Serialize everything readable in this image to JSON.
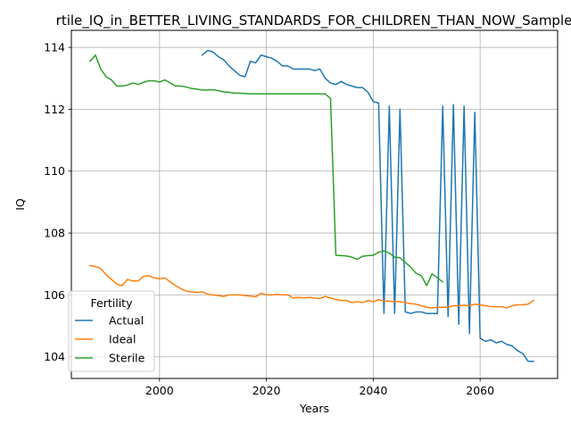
{
  "chart_data": {
    "type": "line",
    "title": "rtile_IQ_in_BETTER_LIVING_STANDARDS_FOR_CHILDREN_THAN_NOW_Sample",
    "xlabel": "Years",
    "ylabel": "IQ",
    "xlim": [
      1983.5,
      2074.5
    ],
    "ylim": [
      103.3,
      114.55
    ],
    "xticks": [
      2000,
      2020,
      2040,
      2060
    ],
    "yticks": [
      104,
      106,
      108,
      110,
      112,
      114
    ],
    "grid": true,
    "legend": {
      "title": "Fertility",
      "placement": "lower-left"
    },
    "series": [
      {
        "name": "Actual",
        "color": "#1f77b4",
        "x": [
          2008,
          2009,
          2010,
          2011,
          2012,
          2013,
          2014,
          2015,
          2016,
          2017,
          2018,
          2019,
          2020,
          2021,
          2022,
          2023,
          2024,
          2025,
          2026,
          2027,
          2028,
          2029,
          2030,
          2031,
          2032,
          2033,
          2034,
          2035,
          2036,
          2037,
          2038,
          2039,
          2040,
          2041,
          2042,
          2043,
          2044,
          2045,
          2046,
          2047,
          2048,
          2049,
          2050,
          2051,
          2052,
          2053,
          2054,
          2055,
          2056,
          2057,
          2058,
          2059,
          2060,
          2061,
          2062,
          2063,
          2064,
          2065,
          2066,
          2067,
          2068,
          2069,
          2070
        ],
        "y": [
          113.75,
          113.9,
          113.85,
          113.7,
          113.6,
          113.4,
          113.25,
          113.1,
          113.05,
          113.55,
          113.5,
          113.75,
          113.7,
          113.65,
          113.55,
          113.4,
          113.4,
          113.3,
          113.3,
          113.3,
          113.3,
          113.25,
          113.3,
          113.0,
          112.85,
          112.8,
          112.9,
          112.8,
          112.75,
          112.7,
          112.7,
          112.55,
          112.25,
          112.2,
          105.4,
          112.1,
          105.4,
          112.0,
          105.45,
          105.4,
          105.45,
          105.45,
          105.4,
          105.4,
          105.4,
          112.1,
          105.3,
          112.15,
          105.05,
          112.1,
          104.75,
          111.9,
          104.6,
          104.5,
          104.55,
          104.45,
          104.5,
          104.4,
          104.35,
          104.2,
          104.1,
          103.85,
          103.85
        ]
      },
      {
        "name": "Ideal",
        "color": "#ff7f0e",
        "x": [
          1987,
          1988,
          1989,
          1990,
          1991,
          1992,
          1993,
          1994,
          1995,
          1996,
          1997,
          1998,
          1999,
          2000,
          2001,
          2002,
          2003,
          2004,
          2005,
          2006,
          2007,
          2008,
          2009,
          2010,
          2011,
          2012,
          2013,
          2014,
          2015,
          2016,
          2017,
          2018,
          2019,
          2020,
          2021,
          2022,
          2023,
          2024,
          2025,
          2026,
          2027,
          2028,
          2029,
          2030,
          2031,
          2032,
          2033,
          2034,
          2035,
          2036,
          2037,
          2038,
          2039,
          2040,
          2041,
          2042,
          2043,
          2044,
          2045,
          2046,
          2047,
          2048,
          2049,
          2050,
          2051,
          2052,
          2053,
          2054,
          2055,
          2056,
          2057,
          2058,
          2059,
          2060,
          2061,
          2062,
          2063,
          2064,
          2065,
          2066,
          2067,
          2068,
          2069,
          2070
        ],
        "y": [
          106.95,
          106.92,
          106.85,
          106.65,
          106.5,
          106.35,
          106.3,
          106.5,
          106.45,
          106.45,
          106.6,
          106.62,
          106.55,
          106.52,
          106.55,
          106.42,
          106.3,
          106.2,
          106.12,
          106.1,
          106.08,
          106.1,
          106.02,
          106.0,
          105.98,
          105.95,
          106.0,
          106.0,
          106.0,
          105.98,
          105.96,
          105.94,
          106.05,
          106.0,
          106.0,
          106.02,
          106.0,
          106.0,
          105.9,
          105.92,
          105.9,
          105.92,
          105.9,
          105.88,
          105.95,
          105.9,
          105.85,
          105.82,
          105.82,
          105.75,
          105.78,
          105.75,
          105.82,
          105.78,
          105.85,
          105.8,
          105.8,
          105.78,
          105.78,
          105.75,
          105.72,
          105.7,
          105.65,
          105.6,
          105.58,
          105.6,
          105.6,
          105.6,
          105.65,
          105.65,
          105.67,
          105.65,
          105.7,
          105.68,
          105.65,
          105.62,
          105.62,
          105.62,
          105.58,
          105.65,
          105.68,
          105.68,
          105.7,
          105.82
        ]
      },
      {
        "name": "Sterile",
        "color": "#2ca02c",
        "x": [
          1987,
          1988,
          1989,
          1990,
          1991,
          1992,
          1993,
          1994,
          1995,
          1996,
          1997,
          1998,
          1999,
          2000,
          2001,
          2002,
          2003,
          2004,
          2005,
          2006,
          2007,
          2008,
          2009,
          2010,
          2011,
          2012,
          2013,
          2014,
          2015,
          2016,
          2017,
          2018,
          2019,
          2020,
          2021,
          2022,
          2023,
          2024,
          2025,
          2026,
          2027,
          2028,
          2029,
          2030,
          2031,
          2032,
          2033,
          2034,
          2035,
          2036,
          2037,
          2038,
          2039,
          2040,
          2041,
          2042,
          2043,
          2044,
          2045,
          2046,
          2047,
          2048,
          2049,
          2050,
          2051,
          2052,
          2053
        ],
        "y": [
          113.55,
          113.75,
          113.3,
          113.05,
          112.95,
          112.75,
          112.75,
          112.78,
          112.85,
          112.8,
          112.87,
          112.92,
          112.92,
          112.88,
          112.95,
          112.85,
          112.75,
          112.75,
          112.72,
          112.67,
          112.65,
          112.62,
          112.62,
          112.63,
          112.6,
          112.56,
          112.55,
          112.52,
          112.52,
          112.51,
          112.5,
          112.5,
          112.5,
          112.5,
          112.5,
          112.5,
          112.5,
          112.5,
          112.5,
          112.5,
          112.5,
          112.5,
          112.5,
          112.5,
          112.5,
          112.35,
          107.28,
          107.27,
          107.26,
          107.22,
          107.15,
          107.25,
          107.27,
          107.28,
          107.38,
          107.42,
          107.35,
          107.22,
          107.2,
          107.05,
          106.9,
          106.7,
          106.62,
          106.3,
          106.68,
          106.55,
          106.42
        ]
      }
    ]
  }
}
